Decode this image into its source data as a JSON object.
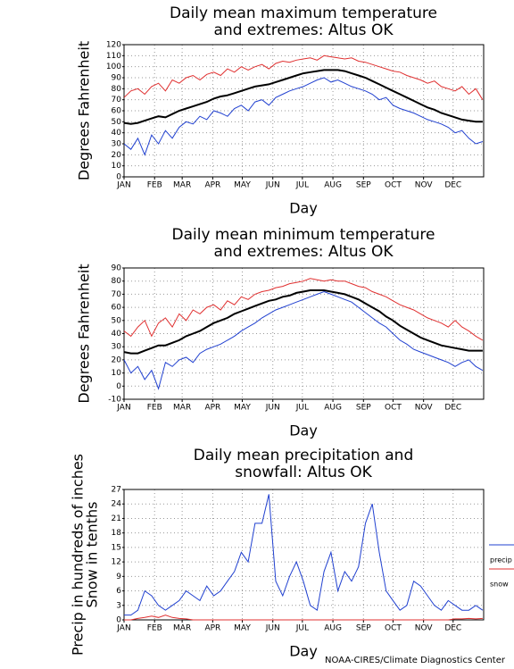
{
  "chart_data": [
    {
      "type": "line",
      "title": [
        "Daily mean maximum temperature",
        "and extremes: Altus OK"
      ],
      "ylabel": [
        "Degrees Fahrenheit"
      ],
      "xlabel": "Day",
      "x": [
        1,
        8,
        15,
        22,
        29,
        36,
        43,
        50,
        57,
        64,
        71,
        78,
        85,
        92,
        99,
        106,
        113,
        120,
        127,
        134,
        141,
        148,
        155,
        162,
        169,
        176,
        183,
        190,
        197,
        204,
        211,
        218,
        225,
        232,
        239,
        246,
        253,
        260,
        267,
        274,
        281,
        288,
        295,
        302,
        309,
        316,
        323,
        330,
        337,
        344,
        351,
        358,
        365
      ],
      "xlim": [
        1,
        366
      ],
      "xticks": [
        {
          "value": 1,
          "label": "JAN"
        },
        {
          "value": 32,
          "label": "FEB"
        },
        {
          "value": 60,
          "label": "MAR"
        },
        {
          "value": 91,
          "label": "APR"
        },
        {
          "value": 121,
          "label": "MAY"
        },
        {
          "value": 152,
          "label": "JUN"
        },
        {
          "value": 182,
          "label": "JUL"
        },
        {
          "value": 213,
          "label": "AUG"
        },
        {
          "value": 244,
          "label": "SEP"
        },
        {
          "value": 274,
          "label": "OCT"
        },
        {
          "value": 305,
          "label": "NOV"
        },
        {
          "value": 335,
          "label": "DEC"
        }
      ],
      "ylim": [
        0,
        120
      ],
      "yticks": [
        0,
        10,
        20,
        30,
        40,
        50,
        60,
        70,
        80,
        90,
        100,
        110,
        120
      ],
      "grid": true,
      "series": [
        {
          "color": "#e03030",
          "values": [
            72,
            78,
            80,
            75,
            82,
            85,
            78,
            88,
            85,
            90,
            92,
            88,
            93,
            95,
            92,
            98,
            95,
            100,
            97,
            100,
            102,
            98,
            103,
            105,
            104,
            106,
            107,
            108,
            106,
            110,
            109,
            108,
            107,
            108,
            105,
            104,
            102,
            100,
            98,
            96,
            95,
            92,
            90,
            88,
            85,
            87,
            82,
            80,
            78,
            82,
            75,
            80,
            70
          ]
        },
        {
          "color": "#2040d0",
          "values": [
            30,
            25,
            35,
            20,
            38,
            30,
            42,
            35,
            45,
            50,
            48,
            55,
            52,
            60,
            58,
            55,
            62,
            65,
            60,
            68,
            70,
            65,
            72,
            75,
            78,
            80,
            82,
            85,
            88,
            90,
            86,
            88,
            85,
            82,
            80,
            78,
            75,
            70,
            72,
            65,
            62,
            60,
            58,
            55,
            52,
            50,
            48,
            45,
            40,
            42,
            35,
            30,
            32
          ]
        },
        {
          "color": "#000000",
          "values": [
            49,
            48,
            49,
            51,
            53,
            55,
            54,
            57,
            60,
            62,
            64,
            66,
            68,
            71,
            73,
            74,
            76,
            78,
            80,
            82,
            83,
            84,
            86,
            88,
            90,
            92,
            94,
            95,
            96,
            97,
            97,
            97,
            96,
            94,
            92,
            90,
            87,
            84,
            81,
            78,
            75,
            72,
            69,
            66,
            63,
            61,
            58,
            56,
            54,
            52,
            51,
            50,
            50
          ]
        }
      ]
    },
    {
      "type": "line",
      "title": [
        "Daily mean minimum temperature",
        "and extremes: Altus OK"
      ],
      "ylabel": [
        "Degrees Fahrenheit"
      ],
      "xlabel": "Day",
      "x": [
        1,
        8,
        15,
        22,
        29,
        36,
        43,
        50,
        57,
        64,
        71,
        78,
        85,
        92,
        99,
        106,
        113,
        120,
        127,
        134,
        141,
        148,
        155,
        162,
        169,
        176,
        183,
        190,
        197,
        204,
        211,
        218,
        225,
        232,
        239,
        246,
        253,
        260,
        267,
        274,
        281,
        288,
        295,
        302,
        309,
        316,
        323,
        330,
        337,
        344,
        351,
        358,
        365
      ],
      "xlim": [
        1,
        366
      ],
      "xticks": [
        {
          "value": 1,
          "label": "JAN"
        },
        {
          "value": 32,
          "label": "FEB"
        },
        {
          "value": 60,
          "label": "MAR"
        },
        {
          "value": 91,
          "label": "APR"
        },
        {
          "value": 121,
          "label": "MAY"
        },
        {
          "value": 152,
          "label": "JUN"
        },
        {
          "value": 182,
          "label": "JUL"
        },
        {
          "value": 213,
          "label": "AUG"
        },
        {
          "value": 244,
          "label": "SEP"
        },
        {
          "value": 274,
          "label": "OCT"
        },
        {
          "value": 305,
          "label": "NOV"
        },
        {
          "value": 335,
          "label": "DEC"
        }
      ],
      "ylim": [
        -10,
        90
      ],
      "yticks": [
        -10,
        0,
        10,
        20,
        30,
        40,
        50,
        60,
        70,
        80,
        90
      ],
      "grid": true,
      "series": [
        {
          "color": "#e03030",
          "values": [
            42,
            38,
            45,
            50,
            38,
            48,
            52,
            45,
            55,
            50,
            58,
            55,
            60,
            62,
            58,
            65,
            62,
            68,
            66,
            70,
            72,
            73,
            75,
            76,
            78,
            79,
            80,
            82,
            81,
            80,
            81,
            80,
            80,
            78,
            76,
            75,
            72,
            70,
            68,
            65,
            62,
            60,
            58,
            55,
            52,
            50,
            48,
            45,
            50,
            45,
            42,
            38,
            35
          ]
        },
        {
          "color": "#2040d0",
          "values": [
            20,
            10,
            15,
            5,
            12,
            -2,
            18,
            15,
            20,
            22,
            18,
            25,
            28,
            30,
            32,
            35,
            38,
            42,
            45,
            48,
            52,
            55,
            58,
            60,
            62,
            64,
            66,
            68,
            70,
            72,
            70,
            68,
            66,
            64,
            60,
            56,
            52,
            48,
            45,
            40,
            35,
            32,
            28,
            26,
            24,
            22,
            20,
            18,
            15,
            18,
            20,
            15,
            12
          ]
        },
        {
          "color": "#000000",
          "values": [
            26,
            25,
            25,
            27,
            29,
            31,
            31,
            33,
            35,
            38,
            40,
            42,
            45,
            48,
            50,
            52,
            55,
            57,
            59,
            61,
            63,
            65,
            66,
            68,
            69,
            71,
            72,
            73,
            73,
            73,
            72,
            71,
            70,
            68,
            66,
            63,
            60,
            57,
            53,
            50,
            46,
            43,
            40,
            37,
            35,
            33,
            31,
            30,
            29,
            28,
            27,
            27,
            27
          ]
        }
      ]
    },
    {
      "type": "line",
      "title": [
        "Daily mean precipitation and",
        "snowfall: Altus OK"
      ],
      "ylabel": [
        "Precip in hundreds of inches",
        "Snow in tenths"
      ],
      "xlabel": "Day",
      "x": [
        1,
        8,
        15,
        22,
        29,
        36,
        43,
        50,
        57,
        64,
        71,
        78,
        85,
        92,
        99,
        106,
        113,
        120,
        127,
        134,
        141,
        148,
        155,
        162,
        169,
        176,
        183,
        190,
        197,
        204,
        211,
        218,
        225,
        232,
        239,
        246,
        253,
        260,
        267,
        274,
        281,
        288,
        295,
        302,
        309,
        316,
        323,
        330,
        337,
        344,
        351,
        358,
        365
      ],
      "xlim": [
        1,
        366
      ],
      "xticks": [
        {
          "value": 1,
          "label": "JAN"
        },
        {
          "value": 32,
          "label": "FEB"
        },
        {
          "value": 60,
          "label": "MAR"
        },
        {
          "value": 91,
          "label": "APR"
        },
        {
          "value": 121,
          "label": "MAY"
        },
        {
          "value": 152,
          "label": "JUN"
        },
        {
          "value": 182,
          "label": "JUL"
        },
        {
          "value": 213,
          "label": "AUG"
        },
        {
          "value": 244,
          "label": "SEP"
        },
        {
          "value": 274,
          "label": "OCT"
        },
        {
          "value": 305,
          "label": "NOV"
        },
        {
          "value": 335,
          "label": "DEC"
        }
      ],
      "ylim": [
        0,
        27
      ],
      "yticks": [
        0,
        3,
        6,
        9,
        12,
        15,
        18,
        21,
        24,
        27
      ],
      "grid": true,
      "series": [
        {
          "name": "precip",
          "color": "#2040d0",
          "values": [
            1,
            1,
            2,
            6,
            5,
            3,
            2,
            3,
            4,
            6,
            5,
            4,
            7,
            5,
            6,
            8,
            10,
            14,
            12,
            20,
            20,
            26,
            8,
            5,
            9,
            12,
            8,
            3,
            2,
            10,
            14,
            6,
            10,
            8,
            11,
            20,
            24,
            14,
            6,
            4,
            2,
            3,
            8,
            7,
            5,
            3,
            2,
            4,
            3,
            2,
            2,
            3,
            2
          ]
        },
        {
          "name": "snow",
          "color": "#e03030",
          "values": [
            0,
            0,
            0.3,
            0.5,
            0.8,
            0.5,
            1,
            0.5,
            0.3,
            0.2,
            0,
            0,
            0,
            0,
            0,
            0,
            0,
            0,
            0,
            0,
            0,
            0,
            0,
            0,
            0,
            0,
            0,
            0,
            0,
            0,
            0,
            0,
            0,
            0,
            0,
            0,
            0,
            0,
            0,
            0,
            0,
            0,
            0,
            0,
            0,
            0,
            0,
            0,
            0.2,
            0.2,
            0.3,
            0.2,
            0.3
          ]
        }
      ]
    }
  ],
  "footer": "NOAA-CIRES/Climate Diagnostics Center"
}
